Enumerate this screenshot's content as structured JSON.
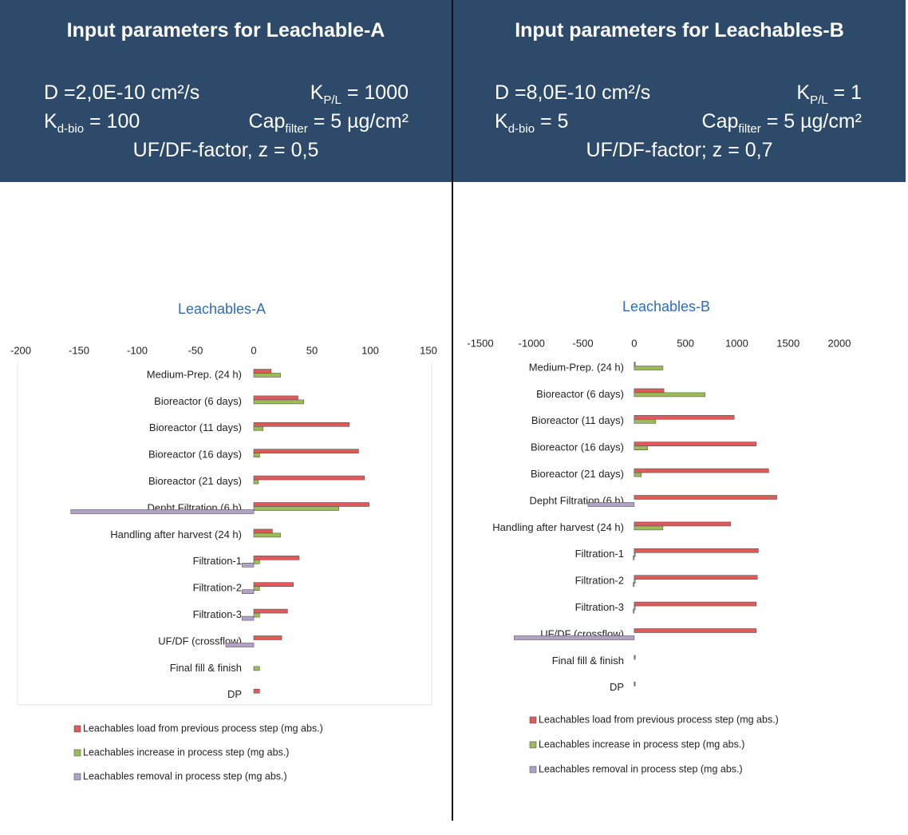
{
  "panels": [
    {
      "title": "Input parameters for Leachable-A",
      "row1": [
        [
          "D =2,0E-10 cm²/s"
        ],
        [
          "K",
          "P/L",
          " = 1000"
        ]
      ],
      "row2": [
        [
          "K",
          "d-bio",
          " = 100"
        ],
        [
          "Cap",
          "filter",
          " = 5 µg/cm²"
        ]
      ],
      "factor": "UF/DF-factor, z = 0,5"
    },
    {
      "title": "Input parameters for Leachables-B",
      "row1": [
        [
          "D =8,0E-10 cm²/s"
        ],
        [
          "K",
          "P/L",
          " = 1"
        ]
      ],
      "row2": [
        [
          "K",
          "d-bio",
          " = 5"
        ],
        [
          "Cap",
          "filter",
          " = 5 µg/cm²"
        ]
      ],
      "factor": "UF/DF-factor; z = 0,7"
    }
  ],
  "chart_data": [
    {
      "type": "bar",
      "orientation": "horizontal",
      "title": "Leachables-A",
      "categories": [
        "Medium-Prep. (24 h)",
        "Bioreactor (6 days)",
        "Bioreactor (11 days)",
        "Bioreactor (16 days)",
        "Bioreactor (21 days)",
        "Depht Filtration (6 h)",
        "Handling after harvest (24 h)",
        "Filtration-1",
        "Filtration-2",
        "Filtration-3",
        "UF/DF (crossflow)",
        "Final fill & finish",
        "DP"
      ],
      "series": [
        {
          "name": "Leachables load from previous process step (mg abs.)",
          "color": "#e05a5a",
          "values": [
            15,
            38,
            82,
            90,
            95,
            99,
            16,
            39,
            34,
            29,
            24,
            0,
            5
          ]
        },
        {
          "name": "Leachables increase in process step (mg abs.)",
          "color": "#9bbb59",
          "values": [
            23,
            43,
            8,
            5,
            4,
            73,
            23,
            5,
            5,
            5,
            0,
            5,
            0
          ]
        },
        {
          "name": "Leachables removal in process step (mg abs.)",
          "color": "#b3a2c7",
          "values": [
            0,
            0,
            0,
            0,
            0,
            -157,
            0,
            -10,
            -10,
            -10,
            -24,
            0,
            0
          ]
        }
      ],
      "xlim": [
        -200,
        150
      ],
      "xticks": [
        -200,
        -150,
        -100,
        -50,
        0,
        50,
        100,
        150
      ]
    },
    {
      "type": "bar",
      "orientation": "horizontal",
      "title": "Leachables-B",
      "categories": [
        "Medium-Prep. (24 h)",
        "Bioreactor (6 days)",
        "Bioreactor (11 days)",
        "Bioreactor (16 days)",
        "Bioreactor (21 days)",
        "Depht Filtration (6 h)",
        "Handling after harvest (24 h)",
        "Filtration-1",
        "Filtration-2",
        "Filtration-3",
        "UF/DF (crossflow)",
        "Final fill & finish",
        "DP"
      ],
      "series": [
        {
          "name": "Leachables load from previous process step (mg abs.)",
          "color": "#e05a5a",
          "values": [
            10,
            290,
            975,
            1190,
            1310,
            1390,
            940,
            1210,
            1200,
            1190,
            1190,
            10,
            10
          ]
        },
        {
          "name": "Leachables increase in process step (mg abs.)",
          "color": "#9bbb59",
          "values": [
            280,
            690,
            210,
            130,
            70,
            0,
            280,
            10,
            10,
            10,
            0,
            0,
            0
          ]
        },
        {
          "name": "Leachables removal in process step (mg abs.)",
          "color": "#b3a2c7",
          "values": [
            0,
            0,
            0,
            0,
            0,
            -450,
            0,
            -10,
            -10,
            -10,
            -1170,
            0,
            0
          ]
        }
      ],
      "xlim": [
        -1500,
        2000
      ],
      "xticks": [
        -1500,
        -1000,
        -500,
        0,
        500,
        1000,
        1500,
        2000
      ]
    }
  ]
}
